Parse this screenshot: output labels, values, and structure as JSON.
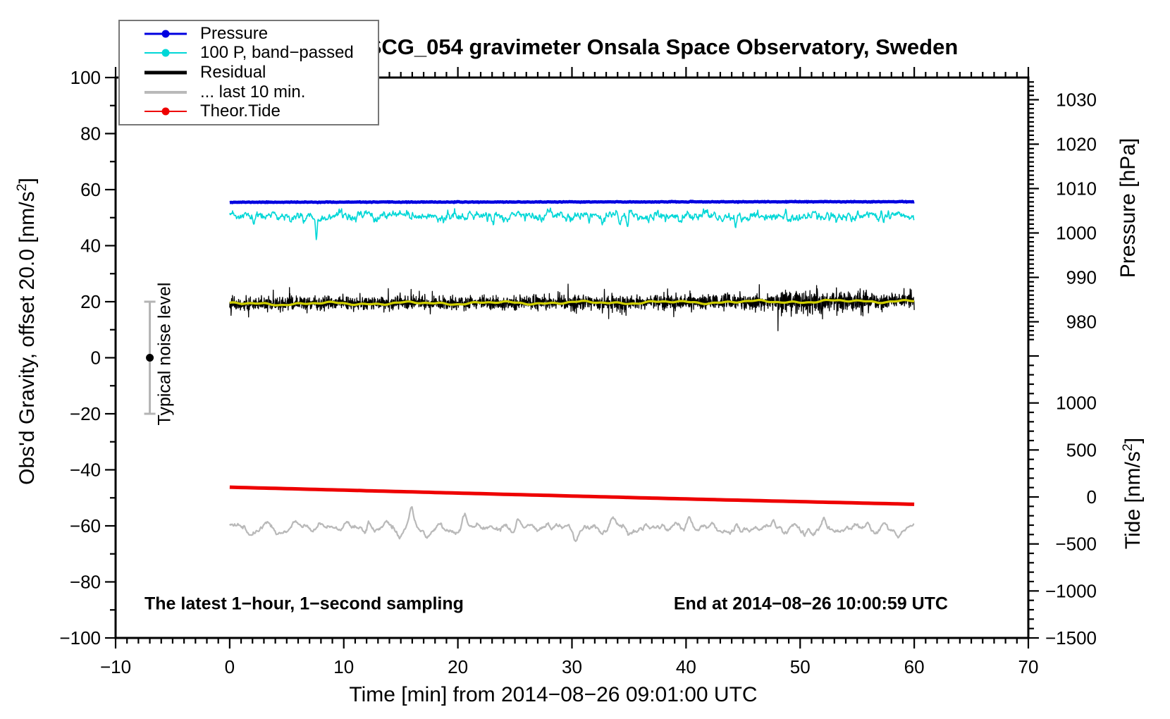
{
  "chart_data": {
    "type": "line",
    "title": "SCG_054 gravimeter Onsala Space Observatory, Sweden",
    "annotations": {
      "sampling": "The latest 1−hour, 1−second sampling",
      "end_time": "End at 2014−08−26 10:00:59 UTC",
      "noise_label": "Typical noise level"
    },
    "axes": {
      "x": {
        "label": "Time [min] from 2014−08−26 09:01:00 UTC",
        "min": -10,
        "max": 70,
        "major": 10,
        "minor": 1,
        "tick_labels": [
          -10,
          0,
          10,
          20,
          30,
          40,
          50,
          60,
          70
        ]
      },
      "y_left": {
        "label": "Obs'd Gravity, offset 20.0 [nm/s^2]",
        "min": -100,
        "max": 100,
        "major": 20,
        "minor": 10,
        "tick_labels": [
          100,
          80,
          60,
          40,
          20,
          0,
          -20,
          -40,
          -60,
          -80,
          -100
        ]
      },
      "y_right_pressure": {
        "label": "Pressure [hPa]",
        "min": 975,
        "max": 1035,
        "major": 10,
        "minor": 1,
        "tick_labels": [
          1030,
          1020,
          1010,
          1000,
          990,
          980
        ]
      },
      "y_right_tide": {
        "label": "Tide [nm/s^2]",
        "min": -1500,
        "max": 1500,
        "major": 500,
        "minor": 100,
        "tick_labels": [
          1000,
          500,
          0,
          -500,
          -1000,
          -1500
        ]
      }
    },
    "grid": false,
    "legend": {
      "position": "top-left",
      "entries": [
        {
          "label": "Pressure",
          "color": "#0000e0",
          "line_width": 3,
          "dot": true
        },
        {
          "label": "100 P, band−passed",
          "color": "#00d7d7",
          "line_width": 2,
          "dot": true
        },
        {
          "label": "Residual",
          "color": "#000000",
          "line_width": 5,
          "dot": false
        },
        {
          "label": "... last 10 min.",
          "color": "#b9b9b9",
          "line_width": 4,
          "dot": false
        },
        {
          "label": "Theor.Tide",
          "color": "#ee0000",
          "line_width": 2,
          "dot": true
        }
      ]
    },
    "series": [
      {
        "name": "pressure",
        "color": "#0000e0",
        "width": 4.5,
        "t_range_min": [
          0,
          60
        ],
        "anchors_gravity": [
          [
            0,
            55.5
          ],
          [
            30,
            55.6
          ],
          [
            60,
            55.7
          ]
        ],
        "approx_value_hpa": 1006.9,
        "noise_sigma": 0.06
      },
      {
        "name": "pressure_bandpassed_x100",
        "color": "#00d7d7",
        "width": 1.6,
        "t_range_min": [
          0,
          60
        ],
        "center_gravity": 50.4,
        "noise_sigma": 0.85,
        "spikes": [
          [
            2.1,
            -3.2
          ],
          [
            7.6,
            -6.3
          ],
          [
            9.9,
            -2.4
          ],
          [
            15.9,
            -2.2
          ],
          [
            23.1,
            -2.0
          ],
          [
            31.5,
            -2.3
          ],
          [
            34.9,
            -3.8
          ],
          [
            38.2,
            -2.2
          ],
          [
            44.3,
            -2.6
          ],
          [
            48.9,
            -2.1
          ],
          [
            52.6,
            -2.4
          ],
          [
            57.3,
            -2.2
          ]
        ]
      },
      {
        "name": "residual",
        "color": "#000000",
        "width": 1.3,
        "t_range_min": [
          0,
          60
        ],
        "anchors_gravity": [
          [
            0,
            19.2
          ],
          [
            20,
            19.5
          ],
          [
            40,
            19.8
          ],
          [
            60,
            20.3
          ]
        ],
        "noise_sigma": 1.25,
        "spike_prob": 0.012,
        "spike_amp": 4.5,
        "burst_window_min": [
          48,
          56
        ],
        "burst_factor": 1.6
      },
      {
        "name": "residual_smoothed",
        "color": "#cfcf00",
        "width": 3.2,
        "t_range_min": [
          0,
          60
        ],
        "anchors_gravity": [
          [
            0,
            19.2
          ],
          [
            20,
            19.5
          ],
          [
            40,
            19.8
          ],
          [
            60,
            20.3
          ]
        ],
        "wiggle_amp": 0.35
      },
      {
        "name": "residual_last_10_min",
        "color": "#b9b9b9",
        "width": 2.2,
        "t_range_min": [
          0,
          60
        ],
        "anchors_gravity": [
          [
            0,
            -60.8
          ],
          [
            60,
            -60.8
          ]
        ],
        "wiggle_amp": 0.85,
        "bumps": [
          [
            12.2,
            4.0
          ],
          [
            14.9,
            -3.6
          ],
          [
            15.9,
            5.2
          ],
          [
            17.2,
            -2.8
          ],
          [
            20.5,
            3.0
          ],
          [
            25.3,
            3.2
          ],
          [
            27.9,
            3.6
          ],
          [
            30.3,
            -3.0
          ],
          [
            33.6,
            3.1
          ],
          [
            36.8,
            -2.6
          ],
          [
            40.3,
            3.2
          ],
          [
            44.8,
            -2.7
          ],
          [
            47.7,
            3.0
          ],
          [
            50.4,
            -2.6
          ],
          [
            52.1,
            3.2
          ],
          [
            55.9,
            3.0
          ],
          [
            58.6,
            -2.5
          ]
        ]
      },
      {
        "name": "theor_tide",
        "color": "#ee0000",
        "width": 5,
        "t_range_min": [
          0,
          60
        ],
        "anchors_gravity": [
          [
            0,
            -46.2
          ],
          [
            20,
            -48.3
          ],
          [
            40,
            -50.4
          ],
          [
            60,
            -52.3
          ]
        ],
        "approx_tide_nms2": [
          110,
          -95
        ]
      }
    ],
    "noise_marker": {
      "t_min": -7,
      "value": 0,
      "error": 20,
      "bar_color": "#b4b4b4",
      "dot_color": "#000000"
    }
  }
}
